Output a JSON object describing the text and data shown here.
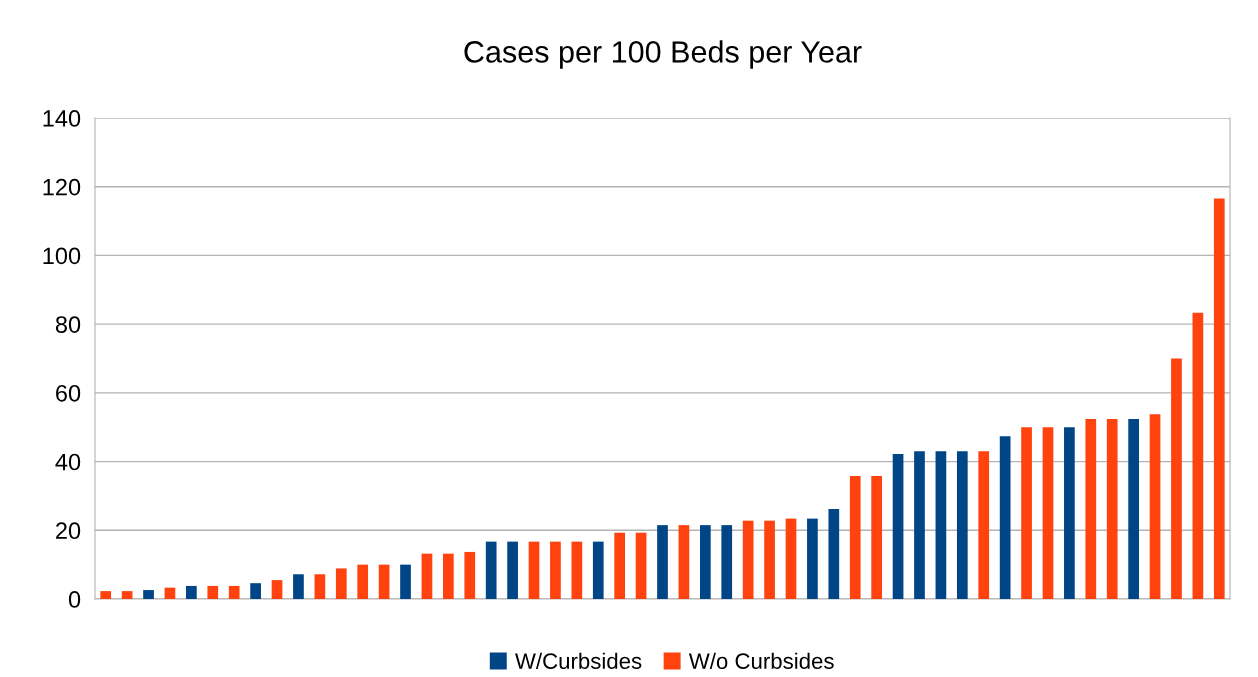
{
  "chart_data": {
    "type": "bar",
    "title": "Cases per 100 Beds per Year",
    "categories": [
      null,
      null,
      null,
      null,
      null,
      null,
      null,
      null,
      null,
      null,
      null,
      null,
      null,
      null,
      null,
      null,
      null,
      null,
      null,
      null,
      null,
      null,
      null,
      null,
      null,
      null,
      null,
      null,
      null,
      null,
      null,
      null,
      null,
      null,
      null,
      null,
      null,
      null,
      null,
      null,
      null,
      null,
      null,
      null,
      null,
      null,
      null,
      null,
      null,
      null,
      null,
      null,
      null
    ],
    "series": [
      {
        "name": "W/Curbsides",
        "color": "#004586",
        "values": [
          null,
          null,
          2.6,
          null,
          3.8,
          null,
          null,
          4.6,
          null,
          7.2,
          null,
          null,
          null,
          null,
          10,
          null,
          null,
          null,
          16.7,
          16.7,
          null,
          null,
          null,
          16.7,
          null,
          null,
          21.5,
          null,
          21.5,
          21.5,
          null,
          null,
          null,
          23.4,
          26.2,
          null,
          null,
          42.2,
          43,
          43,
          43,
          null,
          47.4,
          null,
          null,
          50,
          null,
          null,
          52.4,
          null,
          null,
          null,
          null
        ]
      },
      {
        "name": "W/o Curbsides",
        "color": "#ff420e",
        "values": [
          2.3,
          2.3,
          null,
          3.3,
          null,
          3.8,
          3.8,
          null,
          5.5,
          null,
          7.2,
          8.9,
          10,
          10,
          null,
          13.2,
          13.2,
          13.7,
          null,
          null,
          16.7,
          16.7,
          16.7,
          null,
          19.3,
          19.3,
          null,
          21.5,
          null,
          null,
          22.8,
          22.8,
          23.4,
          null,
          null,
          35.8,
          35.8,
          null,
          null,
          null,
          null,
          43,
          null,
          50,
          50,
          null,
          52.4,
          52.4,
          null,
          53.8,
          70,
          83.3,
          116.6
        ]
      }
    ],
    "ylim": [
      0,
      140
    ],
    "yticks": [
      0,
      20,
      40,
      60,
      80,
      100,
      120,
      140
    ],
    "grid": "y",
    "legend": "bottom"
  }
}
